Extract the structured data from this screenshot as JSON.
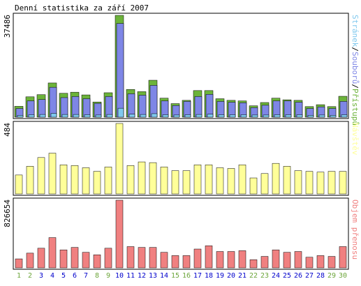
{
  "chart_data": {
    "type": "bar",
    "title": "Denní statistika za září 2007",
    "categories": [
      "1",
      "2",
      "3",
      "4",
      "5",
      "6",
      "7",
      "8",
      "9",
      "10",
      "11",
      "12",
      "13",
      "14",
      "15",
      "16",
      "17",
      "18",
      "19",
      "20",
      "21",
      "22",
      "23",
      "24",
      "25",
      "26",
      "27",
      "28",
      "29",
      "30"
    ],
    "weekend_days": [
      "1",
      "2",
      "8",
      "9",
      "15",
      "16",
      "22",
      "23",
      "29",
      "30"
    ],
    "panels": [
      {
        "name": "hits",
        "axis_max_label": "37486",
        "side_label_parts": [
          "Stránek",
          "/",
          "Souborů",
          "/",
          "Přístupů"
        ],
        "series": [
          {
            "name": "Přístupů",
            "color": "#6cb33a",
            "values": [
              4000,
              7500,
              8300,
              12600,
              8800,
              9200,
              8200,
              5600,
              9000,
              37486,
              10200,
              9400,
              13600,
              7000,
              5000,
              6200,
              9800,
              9800,
              6800,
              6200,
              6000,
              4200,
              5400,
              7000,
              6400,
              6200,
              3900,
              4600,
              3900,
              7700
            ]
          },
          {
            "name": "Souborů",
            "color": "#7e86e6",
            "values": [
              3200,
              6000,
              6500,
              11000,
              7200,
              7600,
              6800,
              5100,
              7600,
              34500,
              8600,
              8100,
              11700,
              6000,
              4300,
              5800,
              7600,
              8400,
              5800,
              5500,
              5300,
              3500,
              4400,
              6000,
              6000,
              5500,
              3200,
              3800,
              3200,
              5800
            ]
          },
          {
            "name": "Stránek",
            "color": "#7fc8ee",
            "values": [
              700,
              900,
              1000,
              1400,
              1000,
              1000,
              900,
              800,
              1000,
              3300,
              1100,
              1000,
              1300,
              900,
              800,
              900,
              1000,
              1100,
              900,
              900,
              900,
              800,
              800,
              900,
              900,
              900,
              700,
              800,
              700,
              900
            ]
          }
        ]
      },
      {
        "name": "visits",
        "axis_max_label": "484",
        "side_label_parts": [
          "Návštěv"
        ],
        "series": [
          {
            "name": "Návštěv",
            "color": "#ffff99",
            "values": [
              130,
              190,
              250,
              280,
              200,
              195,
              180,
              155,
              185,
              484,
              195,
              220,
              215,
              185,
              160,
              160,
              200,
              200,
              180,
              175,
              200,
              110,
              140,
              210,
              190,
              160,
              155,
              150,
              155,
              155
            ]
          }
        ]
      },
      {
        "name": "volume",
        "axis_max_label": "826654",
        "side_label_parts": [
          "Objem přenosu"
        ],
        "series": [
          {
            "name": "Objem přenosu",
            "color": "#f08080",
            "values": [
              110000,
              180000,
              240000,
              370000,
              220000,
              250000,
              190000,
              160000,
              240000,
              826654,
              260000,
              250000,
              250000,
              190000,
              150000,
              150000,
              230000,
              270000,
              200000,
              200000,
              210000,
              100000,
              140000,
              220000,
              190000,
              200000,
              130000,
              150000,
              140000,
              260000
            ]
          }
        ]
      }
    ]
  },
  "colors": {
    "weekday_label": "#0000cc",
    "weekend_label": "#6ca53a",
    "bar_border": "#000000"
  }
}
